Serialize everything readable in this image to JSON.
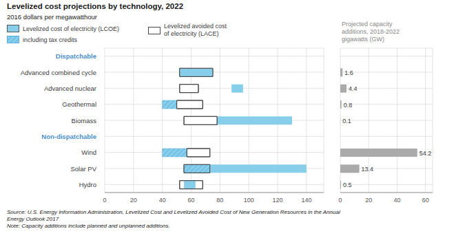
{
  "chart_data": [
    {
      "type": "bar",
      "orientation": "horizontal",
      "title": "Levelized cost projections by technology, 2022",
      "subtitle": "2016 dollars per megawatthour",
      "categories": [
        "Dispatchable",
        "Advanced combined cycle",
        "Advanced nuclear",
        "Geothermal",
        "Biomass",
        "Non-dispatchable",
        "Wind",
        "Solar PV",
        "Hydro"
      ],
      "series": [
        {
          "name": "Levelized cost of electricity (LCOE)",
          "color": "#87CEEB",
          "values": [
            null,
            [
              52,
              75
            ],
            [
              88,
              96
            ],
            null,
            [
              78,
              130
            ],
            null,
            null,
            [
              73,
              140
            ],
            [
              55,
              63
            ]
          ]
        },
        {
          "name": "including tax credits",
          "color": "#5BAEE0",
          "values": [
            null,
            null,
            null,
            [
              40,
              50
            ],
            null,
            null,
            [
              40,
              57
            ],
            [
              55,
              73
            ],
            null
          ]
        },
        {
          "name": "Levelized avoided cost\nof electricity (LACE)",
          "color": "#444444",
          "values": [
            null,
            [
              52,
              75
            ],
            [
              52,
              65
            ],
            [
              50,
              68
            ],
            [
              55,
              78
            ],
            null,
            [
              57,
              73
            ],
            [
              55,
              73
            ],
            [
              52,
              68
            ]
          ]
        }
      ],
      "xlim": [
        0,
        152
      ],
      "xticks": [
        0,
        20,
        40,
        60,
        80,
        100,
        120,
        140
      ],
      "grid": true,
      "annotations": [
        "Source: U.S. Energy Information Administration, Levelized Cost and Levelized Avoided Cost of New Generation Resources in the Annual\nEnergy Outlook 2017",
        "Note: Capacity additions include planned and unplanned additions."
      ]
    },
    {
      "type": "bar",
      "orientation": "horizontal",
      "title": "Projected capacity\nadditions, 2018-2022\ngigawatts (GW)",
      "categories": [
        "Dispatchable",
        "Advanced combined cycle",
        "Advanced nuclear",
        "Geothermal",
        "Biomass",
        "Non-dispatchable",
        "Wind",
        "Solar PV",
        "Hydro"
      ],
      "values": [
        null,
        1.6,
        4.4,
        0.8,
        0.1,
        null,
        54.2,
        13.4,
        0.5
      ],
      "color": "#aaaaaa",
      "xlim": [
        0,
        65
      ],
      "xticks": [
        0,
        20,
        40,
        60
      ],
      "grid": true,
      "data_labels": true,
      "tick_labels": "x"
    }
  ]
}
